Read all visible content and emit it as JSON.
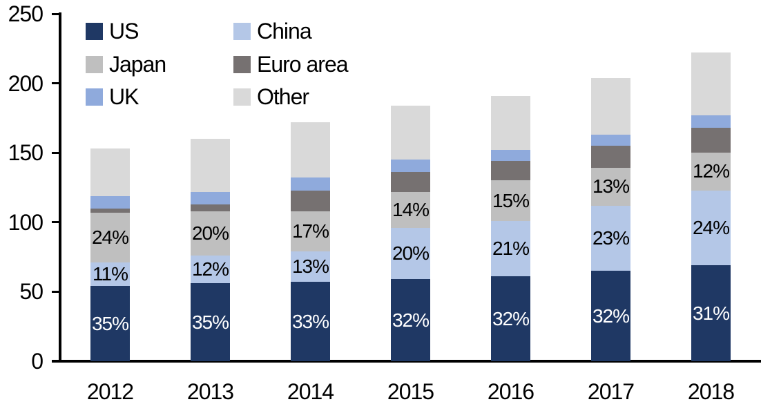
{
  "chart_data": {
    "type": "bar",
    "stacked": true,
    "title": "",
    "categories": [
      "2012",
      "2013",
      "2014",
      "2015",
      "2016",
      "2017",
      "2018"
    ],
    "totals": [
      153,
      160,
      172,
      184,
      191,
      204,
      222
    ],
    "y_axis": {
      "min": 0,
      "max": 250,
      "tick_step": 50,
      "ticks": [
        0,
        50,
        100,
        150,
        200,
        250
      ],
      "tick_labels": [
        "0",
        "50",
        "100",
        "150",
        "200",
        "250"
      ]
    },
    "grid": "off",
    "legend": {
      "position": "top-left",
      "columns": 2,
      "order": [
        "US",
        "China",
        "Japan",
        "Euro area",
        "UK",
        "Other"
      ]
    },
    "series": [
      {
        "name": "US",
        "color": "#1f3864",
        "label_color": "#ffffff",
        "values": [
          54,
          56,
          57,
          59,
          61,
          65,
          69
        ],
        "labels": [
          "35%",
          "35%",
          "33%",
          "32%",
          "32%",
          "32%",
          "31%"
        ]
      },
      {
        "name": "China",
        "color": "#b4c7e7",
        "label_color": "#000000",
        "values": [
          17,
          20,
          22,
          37,
          40,
          47,
          54
        ],
        "labels": [
          "11%",
          "12%",
          "13%",
          "20%",
          "21%",
          "23%",
          "24%"
        ]
      },
      {
        "name": "Japan",
        "color": "#bfbfbf",
        "label_color": "#000000",
        "values": [
          36,
          32,
          29,
          26,
          29,
          27,
          27
        ],
        "labels": [
          "24%",
          "20%",
          "17%",
          "14%",
          "15%",
          "13%",
          "12%"
        ]
      },
      {
        "name": "Euro area",
        "color": "#767171",
        "label_color": "#000000",
        "values": [
          3,
          5,
          15,
          14,
          14,
          16,
          18
        ],
        "labels": [
          null,
          null,
          null,
          null,
          null,
          null,
          null
        ]
      },
      {
        "name": "UK",
        "color": "#8faadc",
        "label_color": "#000000",
        "values": [
          9,
          9,
          9,
          9,
          8,
          8,
          9
        ],
        "labels": [
          null,
          null,
          null,
          null,
          null,
          null,
          null
        ]
      },
      {
        "name": "Other",
        "color": "#d9d9d9",
        "label_color": "#000000",
        "values": [
          34,
          38,
          40,
          39,
          39,
          41,
          45
        ],
        "labels": [
          null,
          null,
          null,
          null,
          null,
          null,
          null
        ]
      }
    ]
  }
}
